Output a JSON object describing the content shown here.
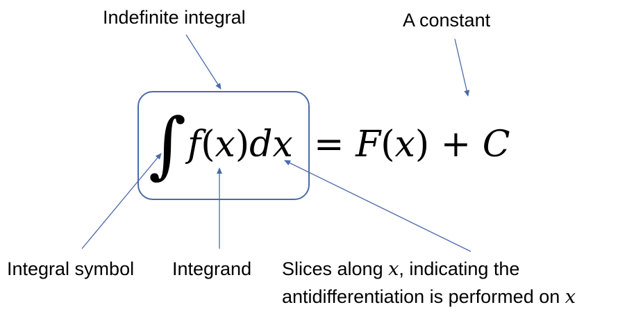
{
  "labels": {
    "indefinite_integral": "Indefinite integral",
    "constant": "A constant",
    "integral_symbol": "Integral symbol",
    "integrand": "Integrand",
    "slices_line1_prefix": "Slices along ",
    "slices_line1_var": "x",
    "slices_line1_suffix": ", indicating the",
    "slices_line2_prefix": "antidifferentiation is performed on ",
    "slices_line2_var": "x"
  },
  "equation": {
    "integral_sign": "∫",
    "integrand": "f",
    "open_paren": "(",
    "variable": "x",
    "close_paren": ")",
    "differential": "dx",
    "equals": "=",
    "antiderivative": "F",
    "open_paren_2": "(",
    "variable_2": "x",
    "close_paren_2": ")",
    "plus": "+",
    "constant": "C"
  },
  "colors": {
    "arrow": "#4a6aa8",
    "box_border": "#4a6aa8",
    "text": "#000000"
  }
}
